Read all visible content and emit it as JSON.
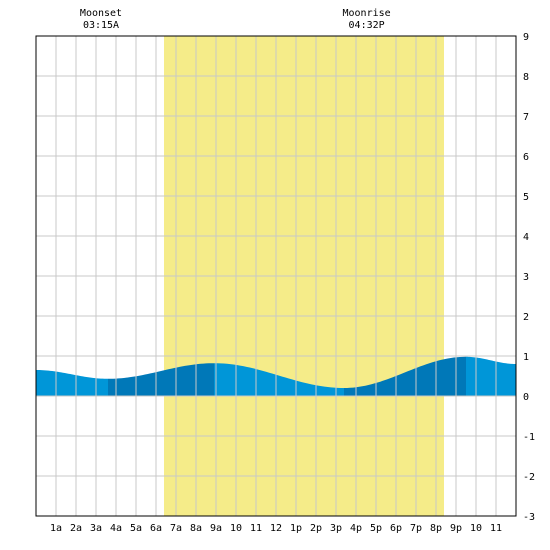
{
  "chart_data": {
    "type": "area",
    "title": "",
    "xlabel": "",
    "ylabel": "",
    "xlim": [
      0,
      24
    ],
    "ylim": [
      -3,
      9
    ],
    "y_ticks": [
      9,
      8,
      7,
      6,
      5,
      4,
      3,
      2,
      1,
      0,
      -1,
      -2,
      -3
    ],
    "x_tick_labels": [
      {
        "hour": 1,
        "label": "1a"
      },
      {
        "hour": 2,
        "label": "2a"
      },
      {
        "hour": 3,
        "label": "3a"
      },
      {
        "hour": 4,
        "label": "4a"
      },
      {
        "hour": 5,
        "label": "5a"
      },
      {
        "hour": 6,
        "label": "6a"
      },
      {
        "hour": 7,
        "label": "7a"
      },
      {
        "hour": 8,
        "label": "8a"
      },
      {
        "hour": 9,
        "label": "9a"
      },
      {
        "hour": 10,
        "label": "10"
      },
      {
        "hour": 11,
        "label": "11"
      },
      {
        "hour": 12,
        "label": "12"
      },
      {
        "hour": 13,
        "label": "1p"
      },
      {
        "hour": 14,
        "label": "2p"
      },
      {
        "hour": 15,
        "label": "3p"
      },
      {
        "hour": 16,
        "label": "4p"
      },
      {
        "hour": 17,
        "label": "5p"
      },
      {
        "hour": 18,
        "label": "6p"
      },
      {
        "hour": 19,
        "label": "7p"
      },
      {
        "hour": 20,
        "label": "8p"
      },
      {
        "hour": 21,
        "label": "9p"
      },
      {
        "hour": 22,
        "label": "10"
      },
      {
        "hour": 23,
        "label": "11"
      }
    ],
    "grid": true,
    "daylight": {
      "start_hour": 6.4,
      "end_hour": 20.4
    },
    "tide_extremes": [
      {
        "hour": 3.6,
        "height": 0.43
      },
      {
        "hour": 8.9,
        "height": 0.82
      },
      {
        "hour": 15.4,
        "height": 0.2
      },
      {
        "hour": 21.5,
        "height": 0.98
      }
    ],
    "tide_start": {
      "hour": 0,
      "height": 0.65
    },
    "tide_end": {
      "hour": 24,
      "height": 0.8
    },
    "moon_events": [
      {
        "label": "Moonset",
        "time": "03:15A",
        "hour": 3.25
      },
      {
        "label": "Moonrise",
        "time": "04:32P",
        "hour": 16.53
      }
    ],
    "colors": {
      "daylight": "#f5ec89",
      "tide_light": "#0096d8",
      "tide_dark": "#0078b8",
      "grid": "#c8c8c8",
      "frame": "#000000"
    }
  }
}
